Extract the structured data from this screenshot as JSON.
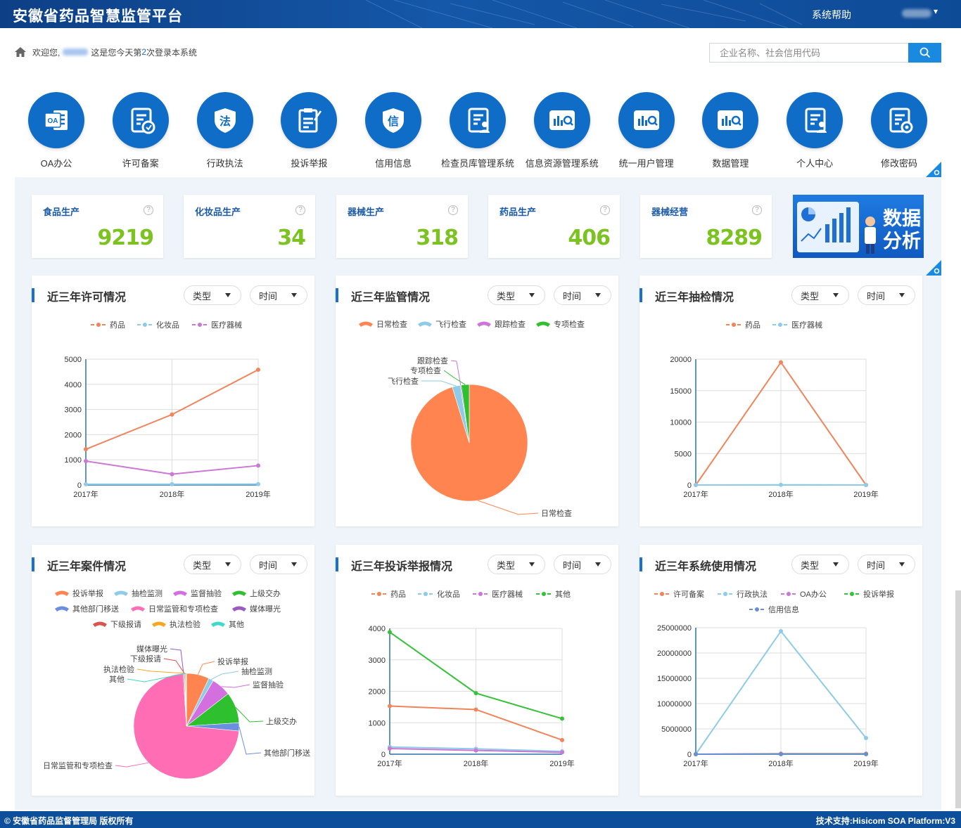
{
  "header": {
    "title": "安徽省药品智慧监管平台",
    "help": "系统帮助"
  },
  "welcome": {
    "prefix": "欢迎您,",
    "middle": "这是您今天第",
    "count": "2",
    "suffix": "次登录本系统"
  },
  "search": {
    "placeholder": "企业名称、社会信用代码"
  },
  "nav": [
    {
      "label": "OA办公",
      "icon": "oa-icon"
    },
    {
      "label": "许可备案",
      "icon": "document-stamp-icon"
    },
    {
      "label": "行政执法",
      "icon": "law-shield-icon"
    },
    {
      "label": "投诉举报",
      "icon": "clipboard-pen-icon"
    },
    {
      "label": "信用信息",
      "icon": "credit-shield-icon"
    },
    {
      "label": "检查员库管理系统",
      "icon": "document-users-icon"
    },
    {
      "label": "信息资源管理系统",
      "icon": "chart-search-icon"
    },
    {
      "label": "统一用户管理",
      "icon": "chart-search-icon"
    },
    {
      "label": "数据管理",
      "icon": "chart-search-icon"
    },
    {
      "label": "个人中心",
      "icon": "document-users-icon"
    },
    {
      "label": "修改密码",
      "icon": "document-gear-icon"
    }
  ],
  "stats": [
    {
      "name": "食品生产",
      "value": "9219"
    },
    {
      "name": "化妆品生产",
      "value": "34"
    },
    {
      "name": "器械生产",
      "value": "318"
    },
    {
      "name": "药品生产",
      "value": "406"
    },
    {
      "name": "器械经营",
      "value": "8289"
    }
  ],
  "banner": {
    "line1": "数据",
    "line2": "分析"
  },
  "controls": {
    "type": "类型",
    "time": "时间"
  },
  "cards": [
    {
      "title": "近三年许可情况"
    },
    {
      "title": "近三年监管情况"
    },
    {
      "title": "近三年抽检情况"
    },
    {
      "title": "近三年案件情况"
    },
    {
      "title": "近三年投诉举报情况"
    },
    {
      "title": "近三年系统使用情况"
    }
  ],
  "chart_data": [
    {
      "type": "line",
      "title": "近三年许可情况",
      "x": [
        "2017年",
        "2018年",
        "2019年"
      ],
      "ylim": [
        0,
        5000
      ],
      "yticks": [
        0,
        1000,
        2000,
        3000,
        4000,
        5000
      ],
      "series": [
        {
          "name": "药品",
          "color": "#f0845a",
          "values": [
            1420,
            2800,
            4580
          ]
        },
        {
          "name": "化妆品",
          "color": "#8ecbe8",
          "values": [
            30,
            30,
            34
          ]
        },
        {
          "name": "医疗器械",
          "color": "#cc77d6",
          "values": [
            950,
            430,
            770
          ]
        }
      ]
    },
    {
      "type": "pie",
      "title": "近三年监管情况",
      "slices": [
        {
          "name": "日常检查",
          "color": "#ff8450",
          "value": 95.3
        },
        {
          "name": "飞行检查",
          "color": "#8ecbe8",
          "value": 2.2
        },
        {
          "name": "跟踪检查",
          "color": "#cc77d6",
          "value": 0.3
        },
        {
          "name": "专项检查",
          "color": "#2ec02e",
          "value": 2.2
        }
      ]
    },
    {
      "type": "line",
      "title": "近三年抽检情况",
      "x": [
        "2017年",
        "2018年",
        "2019年"
      ],
      "ylim": [
        0,
        20000
      ],
      "yticks": [
        0,
        5000,
        10000,
        15000,
        20000
      ],
      "series": [
        {
          "name": "药品",
          "color": "#f0845a",
          "values": [
            0,
            19500,
            0
          ]
        },
        {
          "name": "医疗器械",
          "color": "#8ecbe8",
          "values": [
            0,
            30,
            0
          ]
        }
      ]
    },
    {
      "type": "pie",
      "title": "近三年案件情况",
      "slices": [
        {
          "name": "投诉举报",
          "color": "#ff8450",
          "value": 7.0
        },
        {
          "name": "抽检监测",
          "color": "#8ecbe8",
          "value": 1.5
        },
        {
          "name": "监督抽验",
          "color": "#d46fe0",
          "value": 6.0
        },
        {
          "name": "上级交办",
          "color": "#2ec02e",
          "value": 9.5
        },
        {
          "name": "其他部门移送",
          "color": "#6a8fe0",
          "value": 2.5
        },
        {
          "name": "日常监管和专项检查",
          "color": "#ff6eb4",
          "value": 72.5
        },
        {
          "name": "媒体曝光",
          "color": "#9b59c6",
          "value": 0.3
        },
        {
          "name": "下级报请",
          "color": "#d9534f",
          "value": 0.2
        },
        {
          "name": "执法检验",
          "color": "#f5a623",
          "value": 0.3
        },
        {
          "name": "其他",
          "color": "#3dd9c9",
          "value": 0.2
        }
      ]
    },
    {
      "type": "line",
      "title": "近三年投诉举报情况",
      "x": [
        "2017年",
        "2018年",
        "2019年"
      ],
      "ylim": [
        0,
        4000
      ],
      "yticks": [
        0,
        1000,
        2000,
        3000,
        4000
      ],
      "series": [
        {
          "name": "药品",
          "color": "#f0845a",
          "values": [
            1530,
            1420,
            450
          ]
        },
        {
          "name": "化妆品",
          "color": "#8ecbe8",
          "values": [
            230,
            170,
            90
          ]
        },
        {
          "name": "医疗器械",
          "color": "#cc77d6",
          "values": [
            180,
            120,
            60
          ]
        },
        {
          "name": "其他",
          "color": "#35c23a",
          "values": [
            3880,
            1940,
            1130
          ]
        }
      ]
    },
    {
      "type": "line",
      "title": "近三年系统使用情况",
      "x": [
        "2017年",
        "2018年",
        "2019年"
      ],
      "ylim": [
        0,
        25000000
      ],
      "yticks": [
        0,
        5000000,
        10000000,
        15000000,
        20000000,
        25000000
      ],
      "series": [
        {
          "name": "许可备案",
          "color": "#f0845a",
          "values": [
            0,
            100000,
            100000
          ]
        },
        {
          "name": "行政执法",
          "color": "#8ecbe8",
          "values": [
            0,
            24300000,
            3200000
          ]
        },
        {
          "name": "OA办公",
          "color": "#cc77d6",
          "values": [
            0,
            50000,
            50000
          ]
        },
        {
          "name": "投诉举报",
          "color": "#35c23a",
          "values": [
            0,
            20000,
            20000
          ]
        },
        {
          "name": "信用信息",
          "color": "#6a8fd0",
          "values": [
            0,
            10000,
            10000
          ]
        }
      ]
    }
  ],
  "footer": {
    "left": "© 安徽省药品监督管理局 版权所有",
    "right": "技术支持:Hisicom SOA Platform:V3"
  }
}
